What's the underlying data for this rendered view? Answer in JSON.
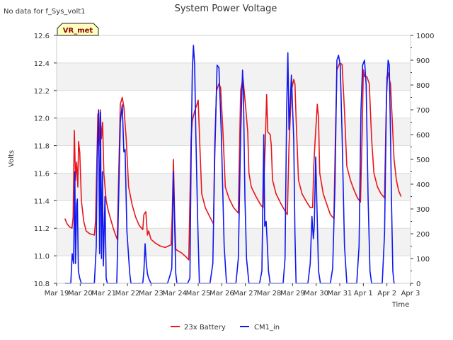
{
  "chart_data": {
    "type": "line",
    "title": "System Power Voltage",
    "note": "No data for f_Sys_volt1",
    "badge": "VR_met",
    "xlabel": "Time",
    "ylabel": "Volts",
    "ylim": [
      10.8,
      12.6
    ],
    "y2lim": [
      0,
      1000
    ],
    "xlim_days": [
      0,
      15
    ],
    "xticks": [
      "Mar 19",
      "Mar 20",
      "Mar 21",
      "Mar 22",
      "Mar 23",
      "Mar 24",
      "Mar 25",
      "Mar 26",
      "Mar 27",
      "Mar 28",
      "Mar 29",
      "Mar 30",
      "Mar 31",
      "Apr 1",
      "Apr 2",
      "Apr 3"
    ],
    "yticks": [
      "10.8",
      "11.0",
      "11.2",
      "11.4",
      "11.6",
      "11.8",
      "12.0",
      "12.2",
      "12.4",
      "12.6"
    ],
    "y2ticks": [
      "0",
      "100",
      "200",
      "300",
      "400",
      "500",
      "600",
      "700",
      "800",
      "900",
      "1000"
    ],
    "shaded_bands": [
      [
        11.0,
        11.2
      ],
      [
        11.4,
        11.6
      ],
      [
        11.8,
        12.0
      ],
      [
        12.2,
        12.4
      ]
    ],
    "series": [
      {
        "name": "23x Battery",
        "color": "#e8161b",
        "axis": "left",
        "points": [
          [
            0.35,
            11.27
          ],
          [
            0.45,
            11.23
          ],
          [
            0.55,
            11.21
          ],
          [
            0.65,
            11.2
          ],
          [
            0.7,
            11.28
          ],
          [
            0.75,
            11.91
          ],
          [
            0.8,
            11.55
          ],
          [
            0.85,
            11.68
          ],
          [
            0.9,
            11.5
          ],
          [
            0.93,
            11.83
          ],
          [
            0.98,
            11.75
          ],
          [
            1.05,
            11.4
          ],
          [
            1.15,
            11.25
          ],
          [
            1.25,
            11.18
          ],
          [
            1.4,
            11.16
          ],
          [
            1.6,
            11.15
          ],
          [
            1.65,
            11.25
          ],
          [
            1.75,
            12.03
          ],
          [
            1.8,
            11.8
          ],
          [
            1.85,
            12.06
          ],
          [
            1.9,
            11.85
          ],
          [
            1.95,
            11.97
          ],
          [
            2.0,
            11.6
          ],
          [
            2.1,
            11.4
          ],
          [
            2.2,
            11.32
          ],
          [
            2.3,
            11.26
          ],
          [
            2.4,
            11.2
          ],
          [
            2.5,
            11.15
          ],
          [
            2.57,
            11.12
          ],
          [
            2.62,
            11.5
          ],
          [
            2.7,
            12.1
          ],
          [
            2.78,
            12.15
          ],
          [
            2.85,
            12.08
          ],
          [
            2.95,
            11.85
          ],
          [
            3.05,
            11.5
          ],
          [
            3.2,
            11.37
          ],
          [
            3.35,
            11.28
          ],
          [
            3.5,
            11.22
          ],
          [
            3.65,
            11.19
          ],
          [
            3.7,
            11.3
          ],
          [
            3.78,
            11.32
          ],
          [
            3.85,
            11.15
          ],
          [
            3.9,
            11.18
          ],
          [
            4.0,
            11.12
          ],
          [
            4.2,
            11.09
          ],
          [
            4.4,
            11.07
          ],
          [
            4.6,
            11.06
          ],
          [
            4.85,
            11.08
          ],
          [
            4.9,
            11.3
          ],
          [
            4.95,
            11.7
          ],
          [
            5.0,
            11.3
          ],
          [
            5.05,
            11.05
          ],
          [
            5.1,
            11.04
          ],
          [
            5.3,
            11.02
          ],
          [
            5.5,
            10.99
          ],
          [
            5.6,
            10.97
          ],
          [
            5.7,
            11.85
          ],
          [
            5.75,
            11.98
          ],
          [
            5.85,
            12.05
          ],
          [
            5.95,
            12.1
          ],
          [
            6.0,
            12.13
          ],
          [
            6.08,
            11.75
          ],
          [
            6.15,
            11.45
          ],
          [
            6.3,
            11.35
          ],
          [
            6.5,
            11.28
          ],
          [
            6.65,
            11.23
          ],
          [
            6.7,
            11.8
          ],
          [
            6.78,
            12.2
          ],
          [
            6.88,
            12.25
          ],
          [
            6.95,
            12.22
          ],
          [
            7.05,
            11.9
          ],
          [
            7.15,
            11.5
          ],
          [
            7.3,
            11.42
          ],
          [
            7.5,
            11.35
          ],
          [
            7.7,
            11.31
          ],
          [
            7.8,
            12.2
          ],
          [
            7.9,
            12.29
          ],
          [
            8.0,
            12.1
          ],
          [
            8.1,
            11.9
          ],
          [
            8.15,
            11.6
          ],
          [
            8.25,
            11.5
          ],
          [
            8.45,
            11.43
          ],
          [
            8.65,
            11.37
          ],
          [
            8.75,
            11.35
          ],
          [
            8.85,
            11.85
          ],
          [
            8.9,
            12.17
          ],
          [
            8.95,
            11.9
          ],
          [
            9.05,
            11.88
          ],
          [
            9.1,
            11.8
          ],
          [
            9.15,
            11.55
          ],
          [
            9.3,
            11.45
          ],
          [
            9.5,
            11.38
          ],
          [
            9.7,
            11.32
          ],
          [
            9.78,
            11.3
          ],
          [
            9.85,
            11.8
          ],
          [
            9.95,
            12.2
          ],
          [
            10.05,
            12.28
          ],
          [
            10.1,
            12.25
          ],
          [
            10.15,
            12.0
          ],
          [
            10.25,
            11.55
          ],
          [
            10.4,
            11.45
          ],
          [
            10.6,
            11.39
          ],
          [
            10.75,
            11.35
          ],
          [
            10.85,
            11.35
          ],
          [
            10.9,
            11.65
          ],
          [
            10.95,
            11.82
          ],
          [
            11.05,
            12.1
          ],
          [
            11.1,
            12.0
          ],
          [
            11.15,
            11.6
          ],
          [
            11.3,
            11.45
          ],
          [
            11.5,
            11.35
          ],
          [
            11.6,
            11.3
          ],
          [
            11.75,
            11.27
          ],
          [
            11.82,
            11.9
          ],
          [
            11.88,
            12.35
          ],
          [
            12.0,
            12.4
          ],
          [
            12.1,
            12.39
          ],
          [
            12.2,
            12.05
          ],
          [
            12.3,
            11.65
          ],
          [
            12.45,
            11.55
          ],
          [
            12.6,
            11.48
          ],
          [
            12.75,
            11.42
          ],
          [
            12.88,
            11.39
          ],
          [
            12.95,
            11.9
          ],
          [
            13.0,
            12.35
          ],
          [
            13.05,
            12.3
          ],
          [
            13.15,
            12.3
          ],
          [
            13.25,
            12.25
          ],
          [
            13.35,
            11.85
          ],
          [
            13.45,
            11.6
          ],
          [
            13.6,
            11.5
          ],
          [
            13.75,
            11.45
          ],
          [
            13.9,
            11.42
          ],
          [
            13.95,
            11.9
          ],
          [
            14.0,
            12.3
          ],
          [
            14.05,
            12.33
          ],
          [
            14.1,
            12.28
          ],
          [
            14.15,
            12.25
          ],
          [
            14.22,
            12.0
          ],
          [
            14.3,
            11.7
          ],
          [
            14.4,
            11.55
          ],
          [
            14.5,
            11.47
          ],
          [
            14.6,
            11.43
          ]
        ]
      },
      {
        "name": "CM1_in",
        "color": "#1018ee",
        "axis": "right",
        "points": [
          [
            0.35,
            0
          ],
          [
            0.6,
            0
          ],
          [
            0.66,
            120
          ],
          [
            0.72,
            80
          ],
          [
            0.77,
            450
          ],
          [
            0.8,
            80
          ],
          [
            0.85,
            320
          ],
          [
            0.88,
            340
          ],
          [
            0.92,
            50
          ],
          [
            0.98,
            20
          ],
          [
            1.05,
            0
          ],
          [
            1.6,
            0
          ],
          [
            1.68,
            150
          ],
          [
            1.72,
            500
          ],
          [
            1.78,
            700
          ],
          [
            1.82,
            120
          ],
          [
            1.86,
            690
          ],
          [
            1.9,
            100
          ],
          [
            1.94,
            450
          ],
          [
            1.98,
            70
          ],
          [
            2.05,
            350
          ],
          [
            2.1,
            20
          ],
          [
            2.15,
            0
          ],
          [
            2.55,
            0
          ],
          [
            2.62,
            300
          ],
          [
            2.7,
            650
          ],
          [
            2.78,
            720
          ],
          [
            2.85,
            530
          ],
          [
            2.9,
            540
          ],
          [
            2.98,
            210
          ],
          [
            3.1,
            40
          ],
          [
            3.15,
            0
          ],
          [
            3.65,
            0
          ],
          [
            3.7,
            50
          ],
          [
            3.75,
            160
          ],
          [
            3.8,
            80
          ],
          [
            3.85,
            40
          ],
          [
            3.9,
            20
          ],
          [
            4.0,
            0
          ],
          [
            4.7,
            0
          ],
          [
            4.8,
            30
          ],
          [
            4.88,
            60
          ],
          [
            4.95,
            450
          ],
          [
            5.0,
            240
          ],
          [
            5.05,
            40
          ],
          [
            5.1,
            0
          ],
          [
            5.55,
            0
          ],
          [
            5.65,
            20
          ],
          [
            5.7,
            500
          ],
          [
            5.75,
            860
          ],
          [
            5.8,
            960
          ],
          [
            5.85,
            880
          ],
          [
            5.9,
            600
          ],
          [
            5.98,
            250
          ],
          [
            6.05,
            0
          ],
          [
            6.5,
            0
          ],
          [
            6.62,
            80
          ],
          [
            6.7,
            500
          ],
          [
            6.8,
            880
          ],
          [
            6.88,
            870
          ],
          [
            6.98,
            600
          ],
          [
            7.1,
            150
          ],
          [
            7.2,
            0
          ],
          [
            7.6,
            0
          ],
          [
            7.7,
            100
          ],
          [
            7.8,
            600
          ],
          [
            7.88,
            860
          ],
          [
            7.92,
            760
          ],
          [
            7.98,
            350
          ],
          [
            8.05,
            100
          ],
          [
            8.15,
            0
          ],
          [
            8.6,
            0
          ],
          [
            8.7,
            50
          ],
          [
            8.78,
            600
          ],
          [
            8.82,
            230
          ],
          [
            8.88,
            250
          ],
          [
            8.92,
            180
          ],
          [
            8.98,
            50
          ],
          [
            9.05,
            0
          ],
          [
            9.6,
            0
          ],
          [
            9.68,
            100
          ],
          [
            9.75,
            700
          ],
          [
            9.8,
            930
          ],
          [
            9.85,
            620
          ],
          [
            9.95,
            840
          ],
          [
            10.05,
            580
          ],
          [
            10.1,
            200
          ],
          [
            10.15,
            0
          ],
          [
            10.65,
            0
          ],
          [
            10.75,
            80
          ],
          [
            10.82,
            270
          ],
          [
            10.88,
            180
          ],
          [
            10.92,
            230
          ],
          [
            10.98,
            510
          ],
          [
            11.05,
            250
          ],
          [
            11.1,
            50
          ],
          [
            11.18,
            0
          ],
          [
            11.6,
            0
          ],
          [
            11.7,
            60
          ],
          [
            11.8,
            400
          ],
          [
            11.88,
            900
          ],
          [
            11.95,
            920
          ],
          [
            12.02,
            880
          ],
          [
            12.1,
            600
          ],
          [
            12.2,
            150
          ],
          [
            12.3,
            0
          ],
          [
            12.72,
            0
          ],
          [
            12.82,
            150
          ],
          [
            12.9,
            700
          ],
          [
            12.97,
            880
          ],
          [
            13.05,
            900
          ],
          [
            13.12,
            800
          ],
          [
            13.2,
            350
          ],
          [
            13.28,
            50
          ],
          [
            13.35,
            0
          ],
          [
            13.8,
            0
          ],
          [
            13.9,
            200
          ],
          [
            13.98,
            750
          ],
          [
            14.05,
            900
          ],
          [
            14.1,
            880
          ],
          [
            14.15,
            600
          ],
          [
            14.2,
            300
          ],
          [
            14.25,
            50
          ],
          [
            14.3,
            0
          ],
          [
            14.35,
            0
          ]
        ]
      }
    ],
    "legend_position": "bottom-center"
  }
}
